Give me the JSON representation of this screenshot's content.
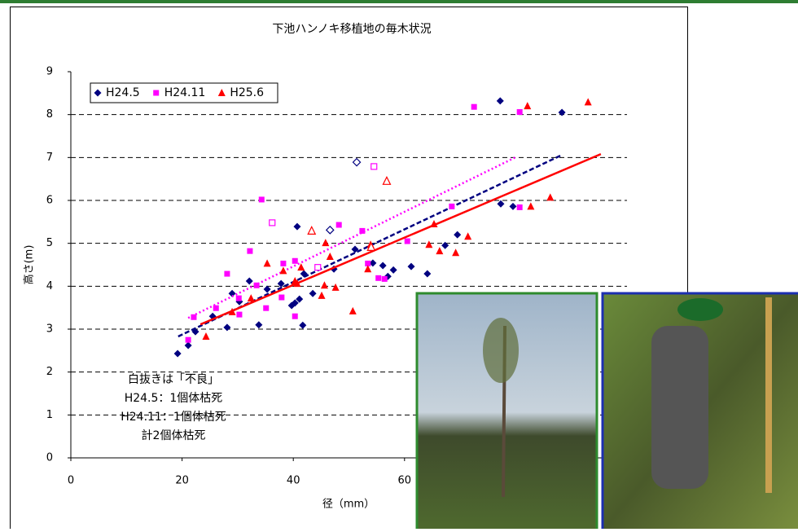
{
  "chart_data": {
    "type": "scatter",
    "title": "下池ハンノキ移植地の毎木状況",
    "x_label": "径（mm）",
    "y_label": "高さ(m)",
    "xlim": [
      0,
      100
    ],
    "xticks": [
      0,
      20,
      40,
      60
    ],
    "ylim": [
      0,
      9
    ],
    "yticks": [
      0,
      1,
      2,
      3,
      4,
      5,
      6,
      7,
      8,
      9
    ],
    "grid": true,
    "legend": "upper left",
    "annotation": [
      "白抜きは「不良」",
      "H24.5：1個体枯死",
      "H24.11：1個体枯死",
      "計2個体枯死"
    ],
    "series": [
      {
        "name": "H24.5",
        "color": "#000080",
        "marker": "diamond",
        "x": [
          19.2,
          21.1,
          22.4,
          25.5,
          28.1,
          29.0,
          30.3,
          32.1,
          33.8,
          35.3,
          37.8,
          39.7,
          40.3,
          40.7,
          41.1,
          41.7,
          41.9,
          43.5,
          47.3,
          51.1,
          54.3,
          56.1,
          57.0,
          58.0,
          61.2,
          64.1,
          67.3,
          69.5,
          77.2,
          77.3,
          79.5,
          88.3,
          46.6,
          51.4
        ],
        "values": [
          2.43,
          2.62,
          2.94,
          3.3,
          3.04,
          3.83,
          3.64,
          4.12,
          3.1,
          3.93,
          4.06,
          3.55,
          3.61,
          5.39,
          3.7,
          3.09,
          4.29,
          3.83,
          4.4,
          4.86,
          4.54,
          4.48,
          4.23,
          4.38,
          4.46,
          4.29,
          4.95,
          5.2,
          8.32,
          5.92,
          5.86,
          8.05,
          5.31,
          6.89
        ],
        "open": [
          false,
          false,
          false,
          false,
          false,
          false,
          false,
          false,
          false,
          false,
          false,
          false,
          false,
          false,
          false,
          false,
          false,
          false,
          false,
          false,
          false,
          false,
          false,
          false,
          false,
          false,
          false,
          false,
          false,
          false,
          false,
          false,
          true,
          true
        ],
        "trend": {
          "style": "dashed",
          "x": [
            19.3,
            88.3
          ],
          "values": [
            2.83,
            7.06
          ]
        }
      },
      {
        "name": "H24.11",
        "color": "#ff00ff",
        "marker": "square",
        "x": [
          21.1,
          22.1,
          26.1,
          28.1,
          30.2,
          30.3,
          32.2,
          33.4,
          34.3,
          35.1,
          37.9,
          38.2,
          40.3,
          40.3,
          48.2,
          52.4,
          53.4,
          55.3,
          56.4,
          60.5,
          68.5,
          72.5,
          80.7,
          80.7,
          36.2,
          44.4,
          54.5
        ],
        "values": [
          2.75,
          3.28,
          3.49,
          4.29,
          3.72,
          3.34,
          4.82,
          4.02,
          6.02,
          3.49,
          3.74,
          4.53,
          4.59,
          3.3,
          5.43,
          5.29,
          4.53,
          4.19,
          4.17,
          5.05,
          5.86,
          8.18,
          8.06,
          5.84,
          5.48,
          4.44,
          6.79
        ],
        "open": [
          false,
          false,
          false,
          false,
          false,
          false,
          false,
          false,
          false,
          false,
          false,
          false,
          false,
          false,
          false,
          false,
          false,
          false,
          false,
          false,
          false,
          false,
          false,
          false,
          true,
          true,
          true
        ],
        "trend": {
          "style": "dotted",
          "x": [
            21.1,
            80.2
          ],
          "values": [
            3.26,
            7.02
          ]
        }
      },
      {
        "name": "H25.6",
        "color": "#ff0000",
        "marker": "triangle",
        "x": [
          24.3,
          29.0,
          32.4,
          35.3,
          38.2,
          40.3,
          40.7,
          41.4,
          45.1,
          45.6,
          45.8,
          46.6,
          47.6,
          50.7,
          53.4,
          53.9,
          64.4,
          65.3,
          66.3,
          69.2,
          71.4,
          82.1,
          82.7,
          86.2,
          93.0,
          43.3,
          56.8,
          54.0
        ],
        "values": [
          2.83,
          3.4,
          3.72,
          4.53,
          4.36,
          4.12,
          4.06,
          4.44,
          3.78,
          4.02,
          5.01,
          4.69,
          3.97,
          3.42,
          4.4,
          4.97,
          4.97,
          5.45,
          4.82,
          4.78,
          5.16,
          8.2,
          5.86,
          6.07,
          8.29,
          5.29,
          6.45,
          4.91
        ],
        "open": [
          false,
          false,
          false,
          false,
          false,
          false,
          false,
          false,
          false,
          false,
          false,
          false,
          false,
          false,
          false,
          false,
          false,
          false,
          false,
          false,
          false,
          false,
          false,
          false,
          false,
          true,
          true,
          true
        ],
        "trend": {
          "style": "solid",
          "x": [
            23.3,
            95.3
          ],
          "values": [
            3.11,
            7.08
          ]
        }
      }
    ]
  }
}
